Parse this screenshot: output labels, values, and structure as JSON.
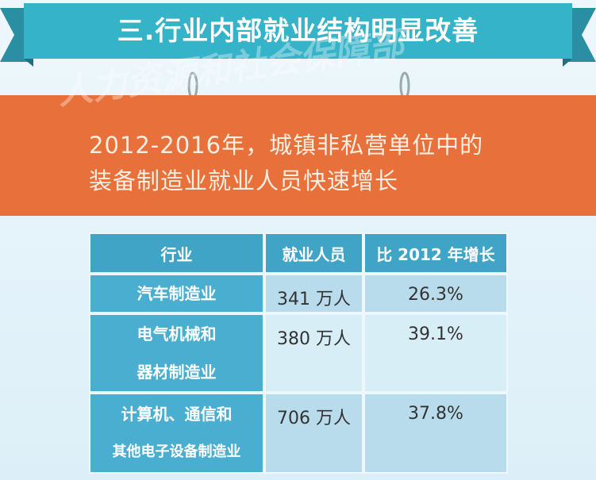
{
  "banner": {
    "title": "三.行业内部就业结构明显改善"
  },
  "watermark": "人力资源和社会保障部",
  "subtitle": {
    "lines": [
      "2012-2016年，城镇非私营单位中的",
      "装备制造业就业人员快速增长"
    ]
  },
  "table": {
    "header": [
      "行业",
      "就业人员",
      "比 2012 年增长"
    ],
    "rows": [
      {
        "industry": [
          "汽车制造业"
        ],
        "employment": "341 万人",
        "growth": "26.3%"
      },
      {
        "industry": [
          "电气机械和",
          "器材制造业"
        ],
        "employment": "380 万人",
        "growth": "39.1%"
      },
      {
        "industry": [
          "计算机、通信和",
          "其他电子设备制造业"
        ],
        "employment": "706 万人",
        "growth": "37.8%"
      }
    ]
  }
}
